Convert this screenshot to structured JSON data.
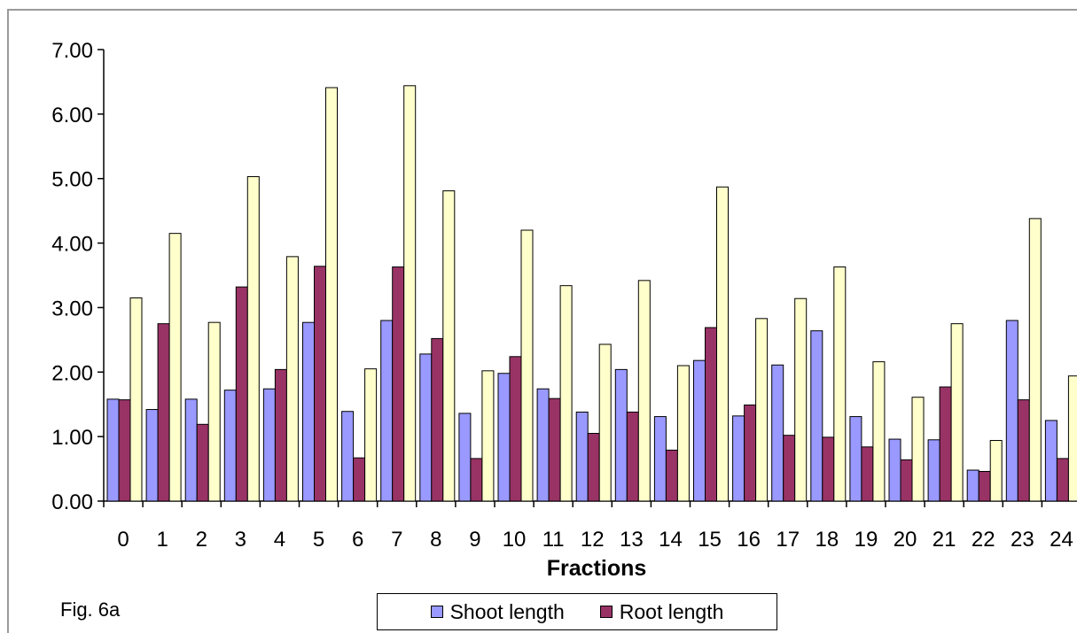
{
  "chart_data": {
    "type": "bar",
    "xlabel": "Fractions",
    "ylabel": "",
    "ylim": [
      0,
      7
    ],
    "yticks": [
      "0.00",
      "1.00",
      "2.00",
      "3.00",
      "4.00",
      "5.00",
      "6.00",
      "7.00"
    ],
    "grid": false,
    "legend_position": "bottom",
    "categories": [
      "0",
      "1",
      "2",
      "3",
      "4",
      "5",
      "6",
      "7",
      "8",
      "9",
      "10",
      "11",
      "12",
      "13",
      "14",
      "15",
      "16",
      "17",
      "18",
      "19",
      "20",
      "21",
      "22",
      "23",
      "24"
    ],
    "series": [
      {
        "name": "Shoot length",
        "color": "#9999ff",
        "values": [
          1.58,
          1.42,
          1.58,
          1.72,
          1.74,
          2.77,
          1.39,
          2.8,
          2.28,
          1.36,
          1.98,
          1.74,
          1.38,
          2.04,
          1.31,
          2.18,
          1.32,
          2.11,
          2.64,
          1.31,
          0.96,
          0.95,
          0.48,
          2.8,
          1.25
        ]
      },
      {
        "color": "#993366",
        "values": [
          1.57,
          2.75,
          1.19,
          3.32,
          2.04,
          3.64,
          0.67,
          3.63,
          2.52,
          0.66,
          2.24,
          1.59,
          1.05,
          1.38,
          0.79,
          2.69,
          1.49,
          1.02,
          0.99,
          0.84,
          0.64,
          1.77,
          0.46,
          1.57,
          0.66
        ]
      },
      {
        "color": "#ffffcc",
        "values": [
          3.15,
          4.15,
          2.77,
          5.03,
          3.79,
          6.41,
          2.05,
          6.44,
          4.81,
          2.02,
          4.2,
          3.34,
          2.43,
          3.42,
          2.1,
          4.87,
          2.83,
          3.14,
          3.63,
          2.16,
          1.61,
          2.75,
          0.94,
          4.38,
          1.94
        ]
      }
    ],
    "legend": [
      {
        "label": "Shoot length",
        "color": "#9999ff"
      },
      {
        "label": "Root length",
        "color": "#993366"
      }
    ]
  },
  "fig_label": "Fig. 6a"
}
